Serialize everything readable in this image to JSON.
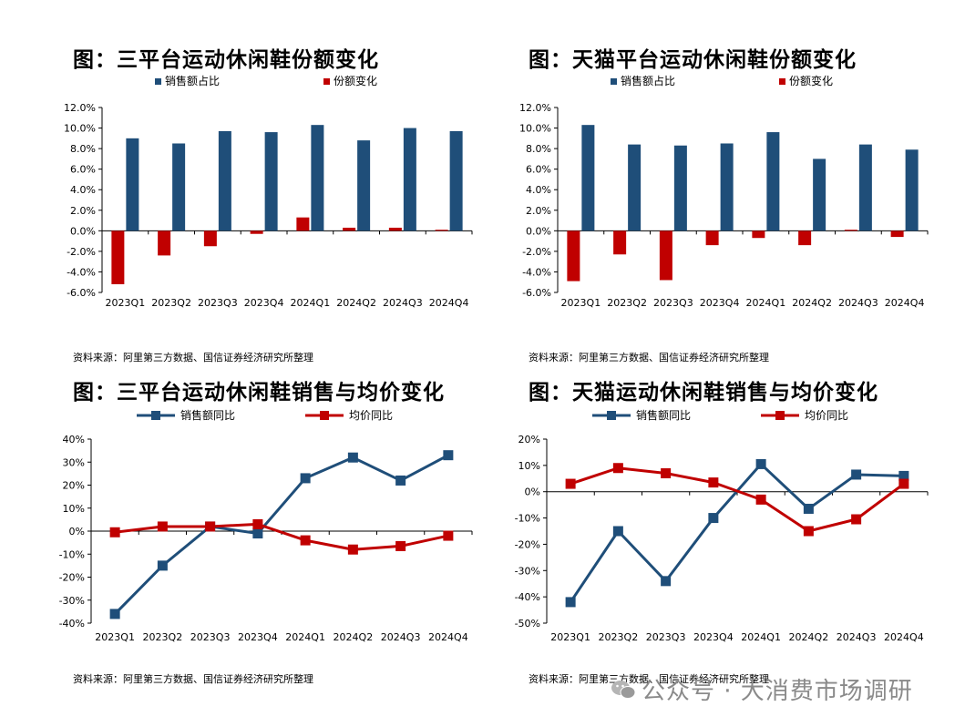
{
  "chart_data": [
    {
      "type": "bar",
      "title": "图：三平台运动休闲鞋份额变化",
      "source": "资料来源：阿里第三方数据、国信证券经济研究所整理",
      "categories": [
        "2023Q1",
        "2023Q2",
        "2023Q3",
        "2023Q4",
        "2024Q1",
        "2024Q2",
        "2024Q3",
        "2024Q4"
      ],
      "series": [
        {
          "name": "销售额占比",
          "color": "#1f4e79",
          "values": [
            9.0,
            8.5,
            9.7,
            9.6,
            10.3,
            8.8,
            10.0,
            9.7
          ]
        },
        {
          "name": "份额变化",
          "color": "#c00000",
          "values": [
            -5.2,
            -2.4,
            -1.5,
            -0.3,
            1.3,
            0.3,
            0.3,
            0.1
          ]
        }
      ],
      "y_ticks": [
        "12.0%",
        "10.0%",
        "8.0%",
        "6.0%",
        "4.0%",
        "2.0%",
        "0.0%",
        "-2.0%",
        "-4.0%",
        "-6.0%"
      ],
      "ylim": [
        -6,
        12
      ]
    },
    {
      "type": "bar",
      "title": "图：天猫平台运动休闲鞋份额变化",
      "source": "资料来源：阿里第三方数据、国信证券经济研究所整理",
      "categories": [
        "2023Q1",
        "2023Q2",
        "2023Q3",
        "2023Q4",
        "2024Q1",
        "2024Q2",
        "2024Q3",
        "2024Q4"
      ],
      "series": [
        {
          "name": "销售额占比",
          "color": "#1f4e79",
          "values": [
            10.3,
            8.4,
            8.3,
            8.5,
            9.6,
            7.0,
            8.4,
            7.9
          ]
        },
        {
          "name": "份额变化",
          "color": "#c00000",
          "values": [
            -4.9,
            -2.3,
            -4.8,
            -1.4,
            -0.7,
            -1.4,
            0.1,
            -0.6
          ]
        }
      ],
      "y_ticks": [
        "12.0%",
        "10.0%",
        "8.0%",
        "6.0%",
        "4.0%",
        "2.0%",
        "0.0%",
        "-2.0%",
        "-4.0%",
        "-6.0%"
      ],
      "ylim": [
        -6,
        12
      ]
    },
    {
      "type": "line",
      "title": "图：三平台运动休闲鞋销售与均价变化",
      "source": "资料来源：阿里第三方数据、国信证券经济研究所整理",
      "categories": [
        "2023Q1",
        "2023Q2",
        "2023Q3",
        "2023Q4",
        "2024Q1",
        "2024Q2",
        "2024Q3",
        "2024Q4"
      ],
      "series": [
        {
          "name": "销售额同比",
          "color": "#1f4e79",
          "values": [
            -36,
            -15,
            2,
            -1,
            23,
            32,
            22,
            33
          ]
        },
        {
          "name": "均价同比",
          "color": "#c00000",
          "values": [
            -0.5,
            2,
            2,
            3,
            -4,
            -8,
            -6.5,
            -2
          ]
        }
      ],
      "y_ticks": [
        "40%",
        "30%",
        "20%",
        "10%",
        "0%",
        "-10%",
        "-20%",
        "-30%",
        "-40%"
      ],
      "ylim": [
        -40,
        40
      ]
    },
    {
      "type": "line",
      "title": "图：天猫运动休闲鞋销售与均价变化",
      "source": "资料来源：阿里第三方数据、国信证券经济研究所整理",
      "categories": [
        "2023Q1",
        "2023Q2",
        "2023Q3",
        "2023Q4",
        "2024Q1",
        "2024Q2",
        "2024Q3",
        "2024Q4"
      ],
      "series": [
        {
          "name": "销售额同比",
          "color": "#1f4e79",
          "values": [
            -42,
            -15,
            -34,
            -10,
            10.5,
            -6.5,
            6.5,
            6
          ]
        },
        {
          "name": "均价同比",
          "color": "#c00000",
          "values": [
            3,
            9,
            7,
            3.5,
            -3,
            -15,
            -10.5,
            3
          ]
        }
      ],
      "y_ticks": [
        "20%",
        "10%",
        "0%",
        "-10%",
        "-20%",
        "-30%",
        "-40%",
        "-50%"
      ],
      "ylim": [
        -50,
        20
      ]
    }
  ],
  "watermark": {
    "text": "公众号 · 大消费市场调研",
    "icon": "wechat-icon"
  }
}
